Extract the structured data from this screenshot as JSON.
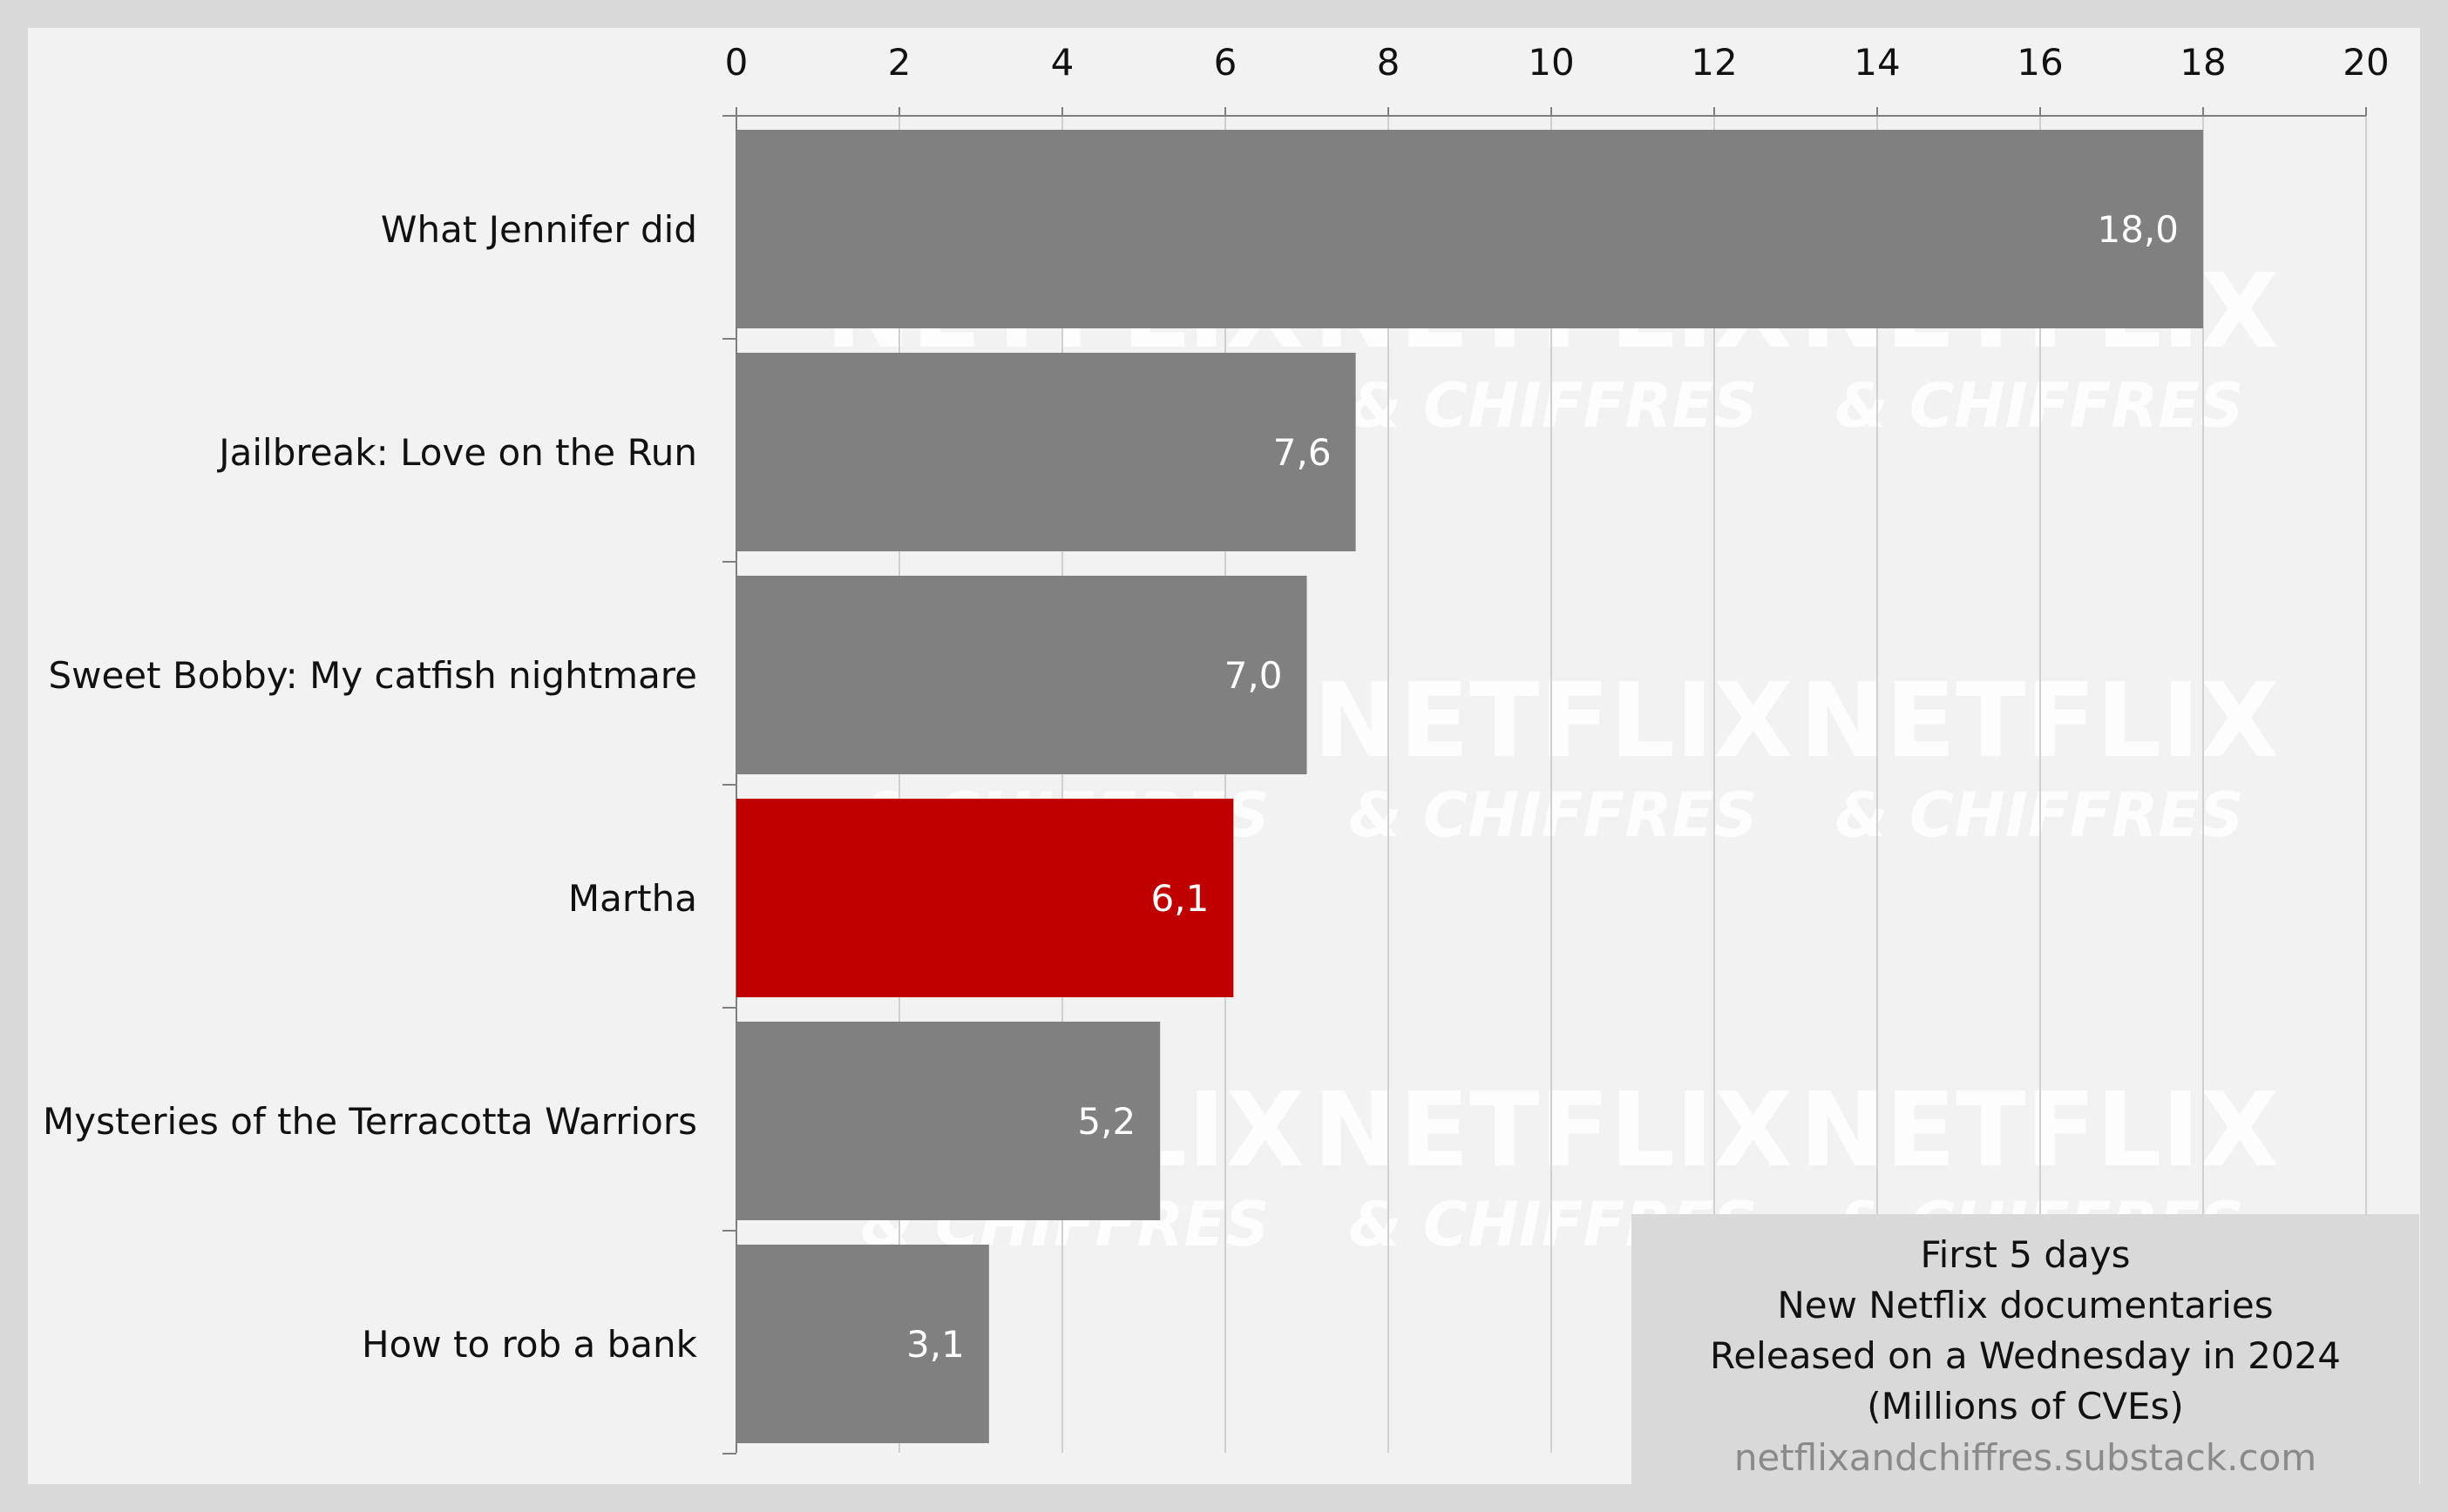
{
  "chart_data": {
    "type": "bar",
    "orientation": "horizontal",
    "categories": [
      "What Jennifer did",
      "Jailbreak: Love on the Run",
      "Sweet Bobby: My catfish nightmare",
      "Martha",
      "Mysteries of the Terracotta Warriors",
      "How to rob a bank"
    ],
    "values": [
      18.0,
      7.6,
      7.0,
      6.1,
      5.2,
      3.1
    ],
    "value_labels": [
      "18,0",
      "7,6",
      "7,0",
      "6,1",
      "5,2",
      "3,1"
    ],
    "highlight_index": 3,
    "x_ticks": [
      "0",
      "2",
      "4",
      "6",
      "8",
      "10",
      "12",
      "14",
      "16",
      "18",
      "20"
    ],
    "xlim": [
      0,
      20
    ],
    "axis_position": "top",
    "grid": true,
    "title": "",
    "xlabel": "",
    "ylabel": ""
  },
  "caption": {
    "lines": [
      "First 5 days",
      "New Netflix documentaries",
      "Released on a Wednesday in 2024",
      "(Millions of CVEs)"
    ],
    "source": "netflixandchiffres.substack.com"
  },
  "watermark": {
    "top": "NETFLIX",
    "bottom": "& CHIFFRES"
  },
  "colors": {
    "page_background": "#d9d9d9",
    "plot_background": "#f2f2f2",
    "bar_default": "#808080",
    "bar_highlight": "#c00000",
    "gridline": "#d0d0d0",
    "axis": "#7f7f7f",
    "value_label": "#ffffff",
    "source_text": "#8a8a8a"
  }
}
